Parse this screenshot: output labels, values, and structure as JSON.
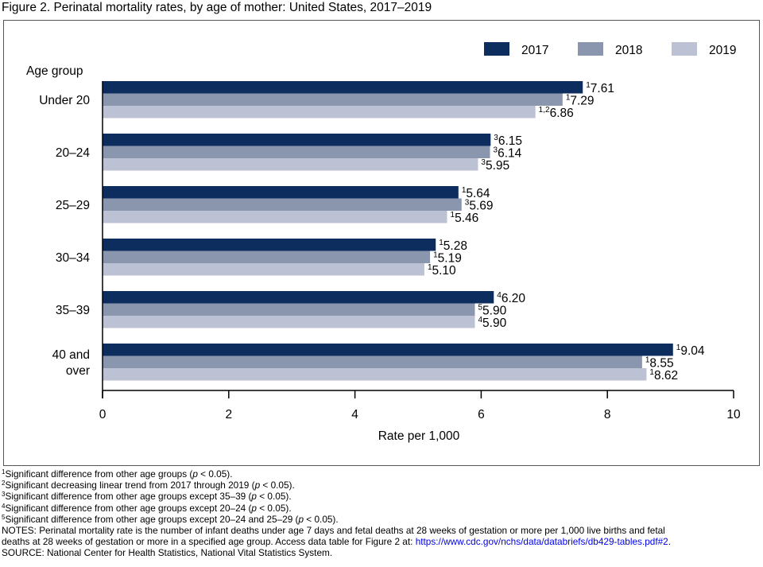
{
  "figure_title": "Figure 2. Perinatal mortality rates, by age of mother: United States, 2017–2019",
  "chart_data": {
    "type": "bar",
    "orientation": "horizontal",
    "title": "Figure 2. Perinatal mortality rates, by age of mother: United States, 2017–2019",
    "category_axis_title": "Age group",
    "xlabel": "Rate per 1,000",
    "xlim": [
      0,
      10
    ],
    "x_ticks": [
      "0",
      "2",
      "4",
      "6",
      "8",
      "10"
    ],
    "categories": [
      [
        "Under 20"
      ],
      [
        "20–24"
      ],
      [
        "25–29"
      ],
      [
        "30–34"
      ],
      [
        "35–39"
      ],
      [
        "40 and",
        "over"
      ]
    ],
    "series": [
      {
        "name": "2017",
        "color": "#0d2d5e",
        "values": [
          7.61,
          6.15,
          5.64,
          5.28,
          6.2,
          9.04
        ],
        "labels": [
          "7.61",
          "6.15",
          "5.64",
          "5.28",
          "6.20",
          "9.04"
        ],
        "footnotes": [
          "1",
          "3",
          "1",
          "1",
          "4",
          "1"
        ]
      },
      {
        "name": "2018",
        "color": "#8a96ae",
        "values": [
          7.29,
          6.14,
          5.69,
          5.19,
          5.9,
          8.55
        ],
        "labels": [
          "7.29",
          "6.14",
          "5.69",
          "5.19",
          "5.90",
          "8.55"
        ],
        "footnotes": [
          "1",
          "3",
          "3",
          "1",
          "5",
          "1"
        ]
      },
      {
        "name": "2019",
        "color": "#bcc2d3",
        "values": [
          6.86,
          5.95,
          5.46,
          5.1,
          5.9,
          8.62
        ],
        "labels": [
          "6.86",
          "5.95",
          "5.46",
          "5.10",
          "5.90",
          "8.62"
        ],
        "footnotes": [
          "1,2",
          "3",
          "1",
          "1",
          "4",
          "1"
        ]
      }
    ],
    "legend_position": "top-right",
    "grid": false
  },
  "footnotes": [
    {
      "mark": "1",
      "text": "Significant difference from other age groups (",
      "italic": "p",
      "after": " < 0.05)."
    },
    {
      "mark": "2",
      "text": "Significant decreasing linear trend from 2017 through 2019 (",
      "italic": "p",
      "after": " < 0.05)."
    },
    {
      "mark": "3",
      "text": "Significant difference from other age groups except 35–39 (",
      "italic": "p",
      "after": " < 0.05)."
    },
    {
      "mark": "4",
      "text": "Significant difference from other age groups except 20–24 (",
      "italic": "p",
      "after": " < 0.05)."
    },
    {
      "mark": "5",
      "text": "Significant difference from other age groups except 20–24 and 25–29 (",
      "italic": "p",
      "after": " < 0.05)."
    }
  ],
  "notes": {
    "line1": "NOTES: Perinatal mortality rate is the number of infant deaths under age 7 days and fetal deaths at 28 weeks of gestation or more per 1,000 live births and fetal",
    "line2": "deaths at 28 weeks of gestation or more in a specified age group. Access data table for Figure 2 at: ",
    "link": "https://www.cdc.gov/nchs/data/databriefs/db429-tables.pdf#2",
    "line2_end": "."
  },
  "source": "SOURCE: National Center for Health Statistics, National Vital Statistics System."
}
